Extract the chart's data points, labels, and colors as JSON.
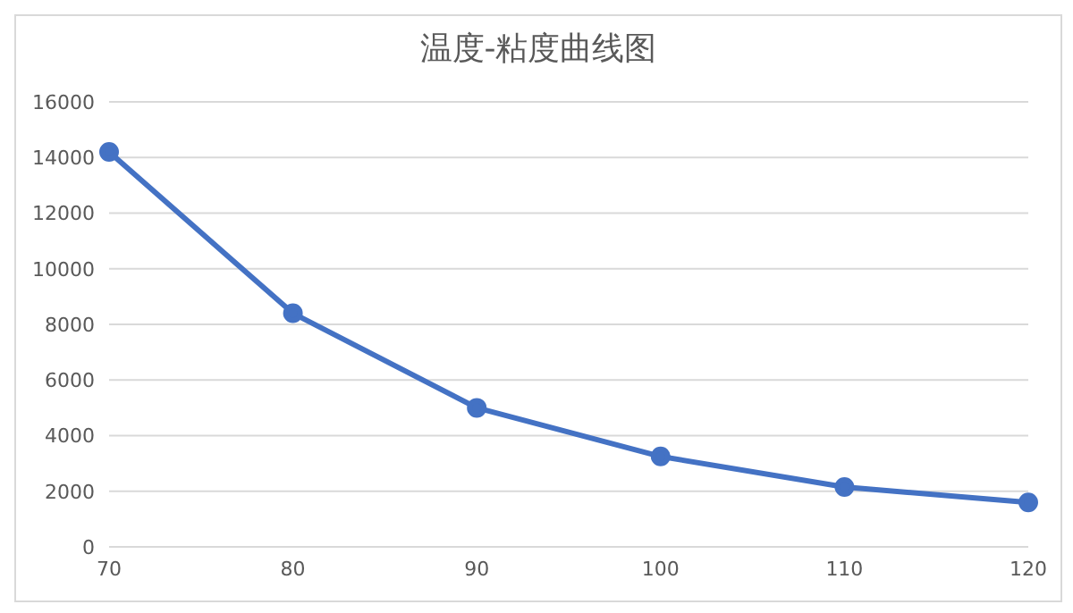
{
  "chart_data": {
    "type": "line",
    "title": "温度-粘度曲线图",
    "categories": [
      "70",
      "80",
      "90",
      "100",
      "110",
      "120"
    ],
    "series": [
      {
        "color": "#4472c4",
        "values": [
          14200,
          8400,
          5000,
          3250,
          2150,
          1600
        ]
      }
    ],
    "ylim": [
      0,
      16000
    ],
    "yticks": [
      0,
      2000,
      4000,
      6000,
      8000,
      10000,
      12000,
      14000,
      16000
    ],
    "grid": "y",
    "marker": "circle",
    "line_style": "solid"
  }
}
